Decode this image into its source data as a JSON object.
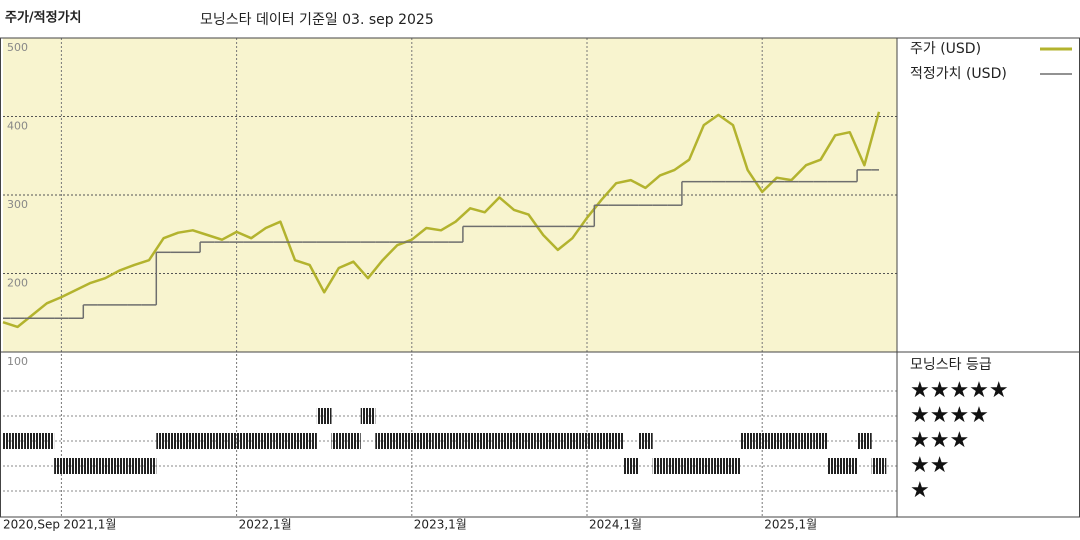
{
  "chart_data": {
    "type": "line",
    "title": "주가/적정가치",
    "subtitle": "모닝스타 데이터 기준일 03. sep 2025",
    "x": [
      "2020-09",
      "2020-10",
      "2020-11",
      "2020-12",
      "2021-01",
      "2021-02",
      "2021-03",
      "2021-04",
      "2021-05",
      "2021-06",
      "2021-07",
      "2021-08",
      "2021-09",
      "2021-10",
      "2021-11",
      "2021-12",
      "2022-01",
      "2022-02",
      "2022-03",
      "2022-04",
      "2022-05",
      "2022-06",
      "2022-07",
      "2022-08",
      "2022-09",
      "2022-10",
      "2022-11",
      "2022-12",
      "2023-01",
      "2023-02",
      "2023-03",
      "2023-04",
      "2023-05",
      "2023-06",
      "2023-07",
      "2023-08",
      "2023-09",
      "2023-10",
      "2023-11",
      "2023-12",
      "2024-01",
      "2024-02",
      "2024-03",
      "2024-04",
      "2024-05",
      "2024-06",
      "2024-07",
      "2024-08",
      "2024-09",
      "2024-10",
      "2024-11",
      "2024-12",
      "2025-01",
      "2025-02",
      "2025-03",
      "2025-04",
      "2025-05",
      "2025-06",
      "2025-07",
      "2025-08",
      "2025-09"
    ],
    "series": [
      {
        "name": "주가 (USD)",
        "color": "#b3b32e",
        "step": false,
        "values": [
          138,
          132,
          147,
          162,
          170,
          179,
          188,
          194,
          204,
          211,
          217,
          245,
          252,
          255,
          249,
          243,
          253,
          245,
          258,
          266,
          217,
          211,
          176,
          207,
          215,
          194,
          217,
          236,
          243,
          258,
          255,
          266,
          283,
          278,
          297,
          281,
          275,
          249,
          230,
          245,
          271,
          294,
          315,
          319,
          309,
          325,
          332,
          345,
          389,
          402,
          389,
          332,
          304,
          322,
          319,
          338,
          345,
          376,
          380,
          338,
          406
        ]
      },
      {
        "name": "적정가치 (USD)",
        "color": "#6e6e6e",
        "step": true,
        "values": [
          143,
          143,
          143,
          143,
          143,
          143,
          160,
          160,
          160,
          160,
          160,
          227,
          227,
          227,
          240,
          240,
          240,
          240,
          240,
          240,
          240,
          240,
          240,
          240,
          240,
          240,
          240,
          240,
          240,
          240,
          240,
          240,
          260,
          260,
          260,
          260,
          260,
          260,
          260,
          260,
          260,
          287,
          287,
          287,
          287,
          287,
          287,
          317,
          317,
          317,
          317,
          317,
          317,
          317,
          317,
          317,
          317,
          317,
          317,
          332,
          332
        ]
      }
    ],
    "ylim": [
      100,
      500
    ],
    "yticks": [
      100,
      200,
      300,
      400,
      500
    ],
    "grid": true,
    "xticks": [
      {
        "value": "2020-09",
        "label": "2020,Sep"
      },
      {
        "value": "2021-01",
        "label": "2021,1월"
      },
      {
        "value": "2022-01",
        "label": "2022,1월"
      },
      {
        "value": "2023-01",
        "label": "2023,1월"
      },
      {
        "value": "2024-01",
        "label": "2024,1월"
      },
      {
        "value": "2025-01",
        "label": "2025,1월"
      }
    ],
    "background": "#f8f4cf",
    "ratings": {
      "title": "모닝스타 등급",
      "levels": [
        "★★★★★",
        "★★★★",
        "★★★",
        "★★",
        "★"
      ],
      "values": [
        3,
        3,
        3,
        3,
        2,
        2,
        2,
        2,
        2,
        2,
        2,
        3,
        3,
        3,
        3,
        3,
        3,
        3,
        3,
        3,
        3,
        3,
        4,
        3,
        3,
        4,
        3,
        3,
        3,
        3,
        3,
        3,
        3,
        3,
        3,
        3,
        3,
        3,
        3,
        3,
        3,
        3,
        3,
        2,
        3,
        2,
        2,
        2,
        2,
        2,
        2,
        3,
        3,
        3,
        3,
        3,
        3,
        2,
        2,
        3,
        2
      ]
    }
  }
}
